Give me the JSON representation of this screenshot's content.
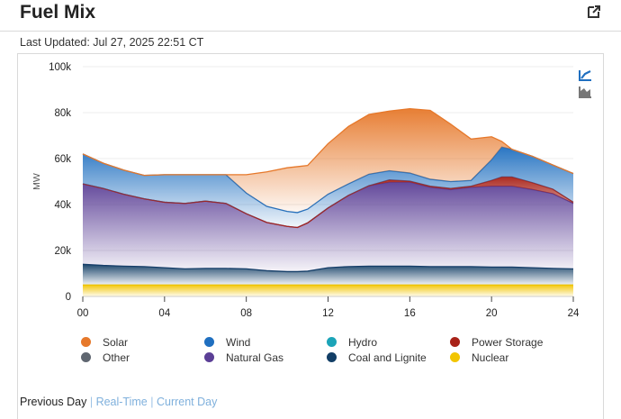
{
  "header": {
    "title": "Fuel Mix",
    "last_updated": "Last Updated: Jul 27, 2025 22:51 CT"
  },
  "colors": {
    "solar": "#e6782a",
    "wind": "#1f6fc0",
    "hydro": "#1ba4b8",
    "power_storage": "#a82218",
    "other": "#5f6670",
    "natural_gas": "#5b3f96",
    "coal": "#123e66",
    "nuclear": "#f2c500",
    "toolbar": "#1f6fc0",
    "toolbar2": "#777777"
  },
  "chart_data": {
    "type": "area",
    "stacked": true,
    "title": "",
    "xlabel": "",
    "ylabel": "MW",
    "xlim": [
      0,
      24
    ],
    "ylim": [
      0,
      100000
    ],
    "x_ticks": [
      "00",
      "04",
      "08",
      "12",
      "16",
      "20",
      "24"
    ],
    "y_ticks": [
      "0",
      "20k",
      "40k",
      "60k",
      "80k",
      "100k"
    ],
    "x": [
      0,
      1,
      2,
      3,
      4,
      5,
      6,
      7,
      8,
      9,
      10,
      10.5,
      11,
      12,
      13,
      14,
      15,
      16,
      17,
      18,
      19,
      20,
      20.5,
      21,
      22,
      23,
      24
    ],
    "series": [
      {
        "name": "Nuclear",
        "key": "nuclear",
        "values": [
          5000,
          5000,
          5000,
          5000,
          5000,
          5000,
          5000,
          5000,
          5000,
          5000,
          5000,
          5000,
          5000,
          5000,
          5000,
          5000,
          5000,
          5000,
          5000,
          5000,
          5000,
          5000,
          5000,
          5000,
          5000,
          5000,
          5000
        ]
      },
      {
        "name": "Coal and Lignite",
        "key": "coal",
        "values": [
          9000,
          8500,
          8200,
          8000,
          7500,
          7000,
          7200,
          7200,
          7000,
          6200,
          5800,
          5800,
          6000,
          7500,
          8000,
          8200,
          8200,
          8200,
          8000,
          8000,
          8000,
          7800,
          7800,
          7800,
          7500,
          7200,
          7000
        ]
      },
      {
        "name": "Other",
        "key": "other",
        "values": [
          0,
          0,
          0,
          0,
          0,
          0,
          0,
          0,
          0,
          0,
          0,
          0,
          0,
          0,
          0,
          0,
          0,
          0,
          0,
          0,
          0,
          0,
          0,
          0,
          0,
          0,
          0
        ]
      },
      {
        "name": "Natural Gas",
        "key": "natural_gas",
        "values": [
          35000,
          33500,
          31300,
          29500,
          28500,
          28500,
          29300,
          28300,
          24000,
          21000,
          19700,
          19200,
          21000,
          26000,
          31000,
          35000,
          36500,
          36500,
          34500,
          33500,
          34500,
          35200,
          35200,
          35200,
          34000,
          32500,
          28500
        ]
      },
      {
        "name": "Hydro",
        "key": "hydro",
        "values": [
          0,
          0,
          0,
          0,
          0,
          0,
          0,
          0,
          0,
          0,
          0,
          0,
          0,
          0,
          0,
          0,
          0,
          0,
          0,
          0,
          0,
          0,
          0,
          0,
          0,
          0,
          0
        ]
      },
      {
        "name": "Power Storage",
        "key": "power_storage",
        "values": [
          0,
          0,
          0,
          0,
          0,
          0,
          0,
          0,
          0,
          0,
          0,
          0,
          0,
          0,
          0,
          0,
          1000,
          500,
          500,
          500,
          500,
          2500,
          4000,
          4000,
          3000,
          2000,
          500
        ]
      },
      {
        "name": "Wind",
        "key": "wind",
        "values": [
          13000,
          11000,
          10500,
          10200,
          12000,
          12500,
          11500,
          12500,
          9000,
          7000,
          6500,
          6500,
          6000,
          6000,
          5000,
          5000,
          4000,
          3500,
          3000,
          3000,
          2500,
          9000,
          13000,
          12000,
          11500,
          10500,
          12500
        ]
      },
      {
        "name": "Solar",
        "key": "solar",
        "values": [
          0,
          0,
          0,
          0,
          0,
          0,
          0,
          0,
          8000,
          15000,
          19000,
          20000,
          19000,
          22000,
          25000,
          26000,
          26000,
          28000,
          30000,
          25000,
          18000,
          10000,
          2500,
          0,
          0,
          0,
          0
        ]
      }
    ]
  },
  "legend": {
    "items": [
      {
        "label": "Solar",
        "key": "solar"
      },
      {
        "label": "Wind",
        "key": "wind"
      },
      {
        "label": "Hydro",
        "key": "hydro"
      },
      {
        "label": "Power Storage",
        "key": "power_storage"
      },
      {
        "label": "Other",
        "key": "other"
      },
      {
        "label": "Natural Gas",
        "key": "natural_gas"
      },
      {
        "label": "Coal and Lignite",
        "key": "coal"
      },
      {
        "label": "Nuclear",
        "key": "nuclear"
      }
    ]
  },
  "footer": {
    "previous_day": "Previous Day",
    "real_time": "Real-Time",
    "current_day": "Current Day",
    "separator": "|"
  }
}
